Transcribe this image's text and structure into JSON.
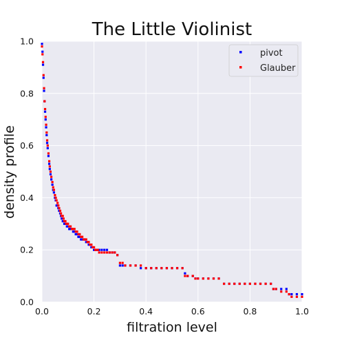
{
  "chart_data": {
    "type": "scatter",
    "title": "The Little Violinist",
    "xlabel": "filtration level",
    "ylabel": "density profile",
    "xlim": [
      0.0,
      1.0
    ],
    "ylim": [
      0.0,
      1.0
    ],
    "xticks": [
      "0.0",
      "0.2",
      "0.4",
      "0.6",
      "0.8",
      "1.0"
    ],
    "yticks": [
      "0.0",
      "0.2",
      "0.4",
      "0.6",
      "0.8",
      "1.0"
    ],
    "grid": true,
    "legend_position": "top-right",
    "series": [
      {
        "name": "pivot",
        "color": "#0000ff",
        "x": [
          0.0,
          0.002,
          0.004,
          0.006,
          0.008,
          0.01,
          0.012,
          0.014,
          0.016,
          0.018,
          0.02,
          0.022,
          0.025,
          0.028,
          0.03,
          0.033,
          0.036,
          0.04,
          0.043,
          0.046,
          0.05,
          0.053,
          0.056,
          0.06,
          0.063,
          0.066,
          0.07,
          0.073,
          0.076,
          0.08,
          0.083,
          0.086,
          0.09,
          0.093,
          0.096,
          0.1,
          0.105,
          0.11,
          0.115,
          0.12,
          0.125,
          0.13,
          0.135,
          0.14,
          0.145,
          0.15,
          0.155,
          0.16,
          0.165,
          0.17,
          0.175,
          0.18,
          0.185,
          0.19,
          0.195,
          0.2,
          0.205,
          0.21,
          0.215,
          0.22,
          0.23,
          0.24,
          0.25,
          0.26,
          0.27,
          0.28,
          0.29,
          0.3,
          0.31,
          0.32,
          0.34,
          0.36,
          0.38,
          0.4,
          0.42,
          0.44,
          0.46,
          0.48,
          0.5,
          0.52,
          0.54,
          0.55,
          0.56,
          0.58,
          0.59,
          0.6,
          0.62,
          0.64,
          0.66,
          0.68,
          0.7,
          0.72,
          0.74,
          0.76,
          0.78,
          0.8,
          0.82,
          0.84,
          0.86,
          0.88,
          0.89,
          0.9,
          0.92,
          0.94,
          0.95,
          0.96,
          0.98,
          1.0
        ],
        "y": [
          0.99,
          0.96,
          0.91,
          0.86,
          0.81,
          0.77,
          0.73,
          0.7,
          0.67,
          0.64,
          0.61,
          0.59,
          0.56,
          0.53,
          0.51,
          0.49,
          0.47,
          0.45,
          0.43,
          0.42,
          0.4,
          0.39,
          0.37,
          0.37,
          0.36,
          0.35,
          0.34,
          0.33,
          0.32,
          0.31,
          0.31,
          0.3,
          0.3,
          0.3,
          0.29,
          0.29,
          0.28,
          0.28,
          0.28,
          0.27,
          0.27,
          0.26,
          0.26,
          0.25,
          0.25,
          0.24,
          0.24,
          0.24,
          0.24,
          0.23,
          0.23,
          0.22,
          0.22,
          0.21,
          0.21,
          0.2,
          0.2,
          0.2,
          0.2,
          0.2,
          0.2,
          0.2,
          0.2,
          0.19,
          0.19,
          0.19,
          0.18,
          0.14,
          0.14,
          0.14,
          0.14,
          0.14,
          0.13,
          0.13,
          0.13,
          0.13,
          0.13,
          0.13,
          0.13,
          0.13,
          0.13,
          0.11,
          0.1,
          0.1,
          0.09,
          0.09,
          0.09,
          0.09,
          0.09,
          0.09,
          0.07,
          0.07,
          0.07,
          0.07,
          0.07,
          0.07,
          0.07,
          0.07,
          0.07,
          0.07,
          0.05,
          0.05,
          0.05,
          0.05,
          0.03,
          0.03,
          0.03,
          0.03
        ]
      },
      {
        "name": "Glauber",
        "color": "#ff0000",
        "x": [
          0.0,
          0.002,
          0.004,
          0.006,
          0.008,
          0.01,
          0.012,
          0.014,
          0.016,
          0.018,
          0.02,
          0.022,
          0.025,
          0.028,
          0.03,
          0.033,
          0.036,
          0.04,
          0.043,
          0.046,
          0.05,
          0.053,
          0.056,
          0.06,
          0.063,
          0.066,
          0.07,
          0.073,
          0.076,
          0.08,
          0.083,
          0.086,
          0.09,
          0.093,
          0.096,
          0.1,
          0.105,
          0.11,
          0.115,
          0.12,
          0.125,
          0.13,
          0.135,
          0.14,
          0.145,
          0.15,
          0.155,
          0.16,
          0.165,
          0.17,
          0.175,
          0.18,
          0.185,
          0.19,
          0.195,
          0.2,
          0.205,
          0.21,
          0.215,
          0.22,
          0.23,
          0.24,
          0.25,
          0.26,
          0.27,
          0.28,
          0.29,
          0.3,
          0.31,
          0.32,
          0.34,
          0.36,
          0.38,
          0.4,
          0.42,
          0.44,
          0.46,
          0.48,
          0.5,
          0.52,
          0.54,
          0.55,
          0.56,
          0.58,
          0.59,
          0.6,
          0.62,
          0.64,
          0.66,
          0.68,
          0.7,
          0.72,
          0.74,
          0.76,
          0.78,
          0.8,
          0.82,
          0.84,
          0.86,
          0.88,
          0.89,
          0.9,
          0.92,
          0.94,
          0.95,
          0.96,
          0.98,
          1.0
        ],
        "y": [
          0.98,
          0.95,
          0.92,
          0.87,
          0.82,
          0.77,
          0.74,
          0.71,
          0.68,
          0.65,
          0.62,
          0.6,
          0.57,
          0.54,
          0.52,
          0.5,
          0.48,
          0.46,
          0.44,
          0.43,
          0.41,
          0.4,
          0.39,
          0.38,
          0.37,
          0.36,
          0.35,
          0.34,
          0.33,
          0.33,
          0.32,
          0.31,
          0.31,
          0.3,
          0.3,
          0.3,
          0.29,
          0.29,
          0.28,
          0.28,
          0.28,
          0.27,
          0.27,
          0.26,
          0.26,
          0.25,
          0.25,
          0.24,
          0.24,
          0.24,
          0.23,
          0.23,
          0.22,
          0.22,
          0.21,
          0.21,
          0.2,
          0.2,
          0.2,
          0.19,
          0.19,
          0.19,
          0.19,
          0.19,
          0.19,
          0.19,
          0.18,
          0.15,
          0.15,
          0.14,
          0.14,
          0.14,
          0.14,
          0.13,
          0.13,
          0.13,
          0.13,
          0.13,
          0.13,
          0.13,
          0.13,
          0.1,
          0.1,
          0.1,
          0.09,
          0.09,
          0.09,
          0.09,
          0.09,
          0.09,
          0.07,
          0.07,
          0.07,
          0.07,
          0.07,
          0.07,
          0.07,
          0.07,
          0.07,
          0.07,
          0.05,
          0.05,
          0.04,
          0.04,
          0.03,
          0.02,
          0.02,
          0.02
        ]
      }
    ]
  }
}
